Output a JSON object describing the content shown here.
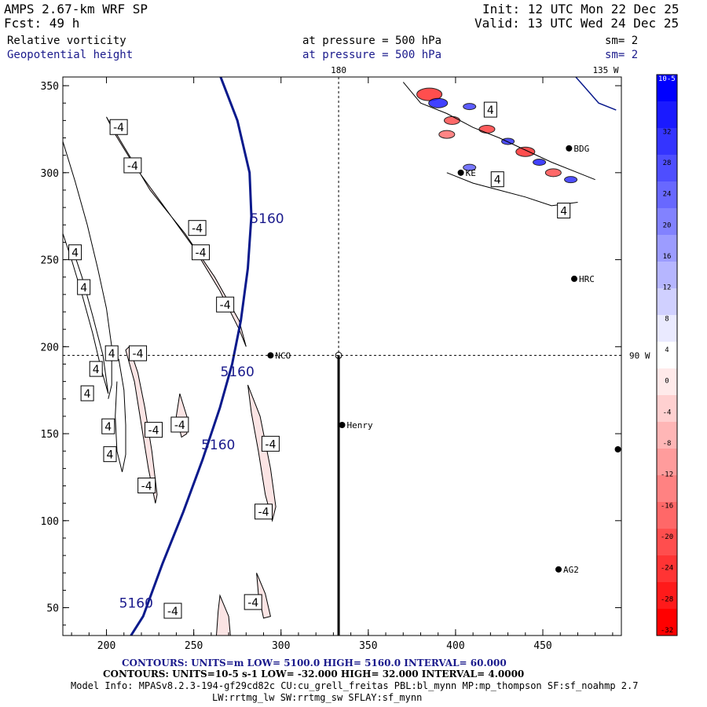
{
  "header": {
    "model": "AMPS 2.67-km WRF SP",
    "forecast": "Fcst:   49 h",
    "init": "Init: 12 UTC Mon 22 Dec 25",
    "valid": "Valid: 13 UTC Wed 24 Dec 25",
    "field1": {
      "name": "Relative vorticity",
      "level": "at pressure =  500 hPa",
      "smooth": "sm= 2"
    },
    "field2": {
      "name": "Geopotential height",
      "level": "at pressure =  500 hPa",
      "smooth": "sm= 2"
    }
  },
  "colors": {
    "height_contour": "#0a1a8c",
    "vort_pos": "#0000ff",
    "vort_neg": "#ff0000",
    "vort_light_neg": "#fbe4e4"
  },
  "chart_data": {
    "type": "contour",
    "x_ticks": [
      200,
      250,
      300,
      350,
      400,
      450
    ],
    "y_ticks": [
      50,
      100,
      150,
      200,
      250,
      300,
      350
    ],
    "xlim": [
      175,
      495
    ],
    "ylim": [
      34,
      355
    ],
    "grid_labels": {
      "top_180": "180",
      "top_135w": "135 W",
      "right_90w": "90 W"
    },
    "stations": [
      {
        "name": "NCO",
        "x": 294,
        "y": 195
      },
      {
        "name": "Henry",
        "x": 335,
        "y": 155
      },
      {
        "name": "HRC",
        "x": 468,
        "y": 239
      },
      {
        "name": "BDG",
        "x": 465,
        "y": 314
      },
      {
        "name": "KE",
        "x": 403,
        "y": 300
      },
      {
        "name": "AG2",
        "x": 459,
        "y": 72
      },
      {
        "name": "",
        "x": 493,
        "y": 141
      }
    ],
    "height_contours": [
      {
        "label": "5160",
        "points": [
          [
            265,
            356
          ],
          [
            275,
            330
          ],
          [
            282,
            300
          ],
          [
            283,
            275
          ],
          [
            281,
            245
          ],
          [
            277,
            215
          ],
          [
            272,
            190
          ],
          [
            265,
            165
          ],
          [
            255,
            135
          ],
          [
            244,
            105
          ],
          [
            232,
            75
          ],
          [
            221,
            45
          ],
          [
            214,
            34
          ]
        ]
      }
    ],
    "height_labels": [
      {
        "text": "5160",
        "x": 292,
        "y": 271
      },
      {
        "text": "5160",
        "x": 275,
        "y": 183
      },
      {
        "text": "5160",
        "x": 264,
        "y": 141
      },
      {
        "text": "5160",
        "x": 217,
        "y": 50
      }
    ],
    "vort_labels": [
      {
        "text": "-4",
        "x": 207,
        "y": 326
      },
      {
        "text": "-4",
        "x": 215,
        "y": 304
      },
      {
        "text": "-4",
        "x": 252,
        "y": 268
      },
      {
        "text": "-4",
        "x": 254,
        "y": 254
      },
      {
        "text": "-4",
        "x": 268,
        "y": 224
      },
      {
        "text": "-4",
        "x": 218,
        "y": 196
      },
      {
        "text": "-4",
        "x": 227,
        "y": 152
      },
      {
        "text": "-4",
        "x": 242,
        "y": 155
      },
      {
        "text": "-4",
        "x": 294,
        "y": 144
      },
      {
        "text": "-4",
        "x": 223,
        "y": 120
      },
      {
        "text": "-4",
        "x": 290,
        "y": 105
      },
      {
        "text": "-4",
        "x": 238,
        "y": 48
      },
      {
        "text": "-4",
        "x": 284,
        "y": 53
      },
      {
        "text": "4",
        "x": 182,
        "y": 254
      },
      {
        "text": "4",
        "x": 187,
        "y": 234
      },
      {
        "text": "4",
        "x": 194,
        "y": 187
      },
      {
        "text": "4",
        "x": 189,
        "y": 173
      },
      {
        "text": "4",
        "x": 201,
        "y": 154
      },
      {
        "text": "4",
        "x": 202,
        "y": 138
      },
      {
        "text": "4",
        "x": 203,
        "y": 196
      },
      {
        "text": "4",
        "x": 420,
        "y": 336
      },
      {
        "text": "4",
        "x": 424,
        "y": 296
      },
      {
        "text": "4",
        "x": 462,
        "y": 278
      }
    ],
    "neg_vort_bands": [
      [
        [
          200,
          332
        ],
        [
          210,
          315
        ],
        [
          225,
          290
        ],
        [
          245,
          265
        ],
        [
          262,
          240
        ],
        [
          276,
          215
        ],
        [
          280,
          200
        ],
        [
          276,
          210
        ],
        [
          265,
          232
        ],
        [
          250,
          257
        ],
        [
          232,
          282
        ],
        [
          216,
          304
        ],
        [
          205,
          322
        ]
      ],
      [
        [
          213,
          200
        ],
        [
          218,
          185
        ],
        [
          222,
          165
        ],
        [
          226,
          140
        ],
        [
          229,
          115
        ],
        [
          228,
          110
        ],
        [
          224,
          130
        ],
        [
          220,
          155
        ],
        [
          216,
          180
        ],
        [
          211,
          198
        ]
      ],
      [
        [
          281,
          178
        ],
        [
          288,
          160
        ],
        [
          294,
          130
        ],
        [
          297,
          108
        ],
        [
          295,
          100
        ],
        [
          291,
          115
        ],
        [
          287,
          140
        ],
        [
          283,
          162
        ]
      ],
      [
        [
          242,
          173
        ],
        [
          246,
          160
        ],
        [
          246,
          150
        ],
        [
          243,
          148
        ],
        [
          240,
          160
        ]
      ],
      [
        [
          265,
          57
        ],
        [
          270,
          45
        ],
        [
          271,
          34
        ],
        [
          263,
          34
        ],
        [
          264,
          48
        ]
      ],
      [
        [
          286,
          70
        ],
        [
          291,
          58
        ],
        [
          294,
          45
        ],
        [
          290,
          44
        ],
        [
          287,
          58
        ]
      ]
    ],
    "pos_vort_lines": [
      [
        [
          175,
          318
        ],
        [
          182,
          295
        ],
        [
          189,
          270
        ],
        [
          195,
          245
        ],
        [
          200,
          222
        ],
        [
          203,
          200
        ],
        [
          203,
          178
        ],
        [
          201,
          170
        ]
      ],
      [
        [
          175,
          265
        ],
        [
          180,
          250
        ],
        [
          186,
          230
        ],
        [
          192,
          208
        ],
        [
          197,
          187
        ],
        [
          201,
          173
        ],
        [
          198,
          195
        ],
        [
          192,
          218
        ],
        [
          186,
          240
        ],
        [
          180,
          258
        ]
      ],
      [
        [
          207,
          193
        ],
        [
          210,
          175
        ],
        [
          211,
          155
        ],
        [
          211,
          138
        ],
        [
          209,
          128
        ],
        [
          206,
          140
        ],
        [
          205,
          160
        ],
        [
          206,
          180
        ]
      ]
    ],
    "colorbar": {
      "units": "10-5 s-1",
      "ticks": [
        32,
        28,
        24,
        20,
        16,
        12,
        8,
        4,
        0,
        -4,
        -8,
        -12,
        -16,
        -20,
        -24,
        -28,
        -32
      ],
      "colors": [
        "#0000ff",
        "#1a1aff",
        "#3434ff",
        "#4e4eff",
        "#6868ff",
        "#8282ff",
        "#9c9cff",
        "#b6b6ff",
        "#d0d0ff",
        "#eaeaff",
        "#ffffff",
        "#ffeaea",
        "#ffd0d0",
        "#ffb6b6",
        "#ff9c9c",
        "#ff8282",
        "#ff6868",
        "#ff4e4e",
        "#ff3434",
        "#ff1a1a",
        "#ff0000"
      ]
    }
  },
  "footer": {
    "line1": "CONTOURS:  UNITS=m  LOW=  5100.0         HIGH=  5160.0        INTERVAL=   60.000",
    "line2": "CONTOURS:  UNITS=10-5 s-1  LOW=  -32.000        HIGH=  32.000       INTERVAL=   4.0000",
    "line3": "Model Info: MPASv8.2.3-194-gf29cd82c CU:cu_grell_freitas PBL:bl_mynn MP:mp_thompson SF:sf_noahmp 2.7",
    "line4": "LW:rrtmg_lw SW:rrtmg_sw SFLAY:sf_mynn"
  }
}
